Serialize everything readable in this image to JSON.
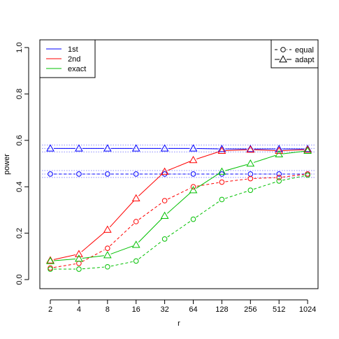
{
  "chart_data": {
    "type": "line",
    "xlabel": "r",
    "ylabel": "power",
    "x": [
      "2",
      "4",
      "8",
      "16",
      "32",
      "64",
      "128",
      "256",
      "512",
      "1024"
    ],
    "ylim": [
      0.0,
      1.0
    ],
    "yticks": [
      "0.0",
      "0.2",
      "0.4",
      "0.6",
      "0.8",
      "1.0"
    ],
    "grid": false,
    "legend_method": {
      "placement": "top-left",
      "entries": [
        {
          "label": "1st",
          "color": "#0000ff"
        },
        {
          "label": "2nd",
          "color": "#ff0000"
        },
        {
          "label": "exact",
          "color": "#00c000"
        }
      ]
    },
    "legend_strategy": {
      "placement": "top-right",
      "entries": [
        {
          "label": "equal",
          "line": "dashed",
          "marker": "circle"
        },
        {
          "label": "adapt",
          "line": "solid",
          "marker": "triangle"
        }
      ]
    },
    "reference_bands": [
      {
        "color": "#0000ff",
        "center": 0.565,
        "low": 0.55,
        "high": 0.58
      },
      {
        "color": "#0000ff",
        "center": 0.455,
        "low": 0.44,
        "high": 0.47
      }
    ],
    "series": [
      {
        "method": "1st",
        "strategy": "adapt",
        "color": "#0000ff",
        "line": "solid",
        "marker": "triangle",
        "values": [
          0.565,
          0.565,
          0.565,
          0.565,
          0.565,
          0.565,
          0.563,
          0.563,
          0.563,
          0.563
        ]
      },
      {
        "method": "1st",
        "strategy": "equal",
        "color": "#0000ff",
        "line": "dashed",
        "marker": "circle",
        "values": [
          0.455,
          0.455,
          0.455,
          0.455,
          0.455,
          0.455,
          0.455,
          0.455,
          0.455,
          0.455
        ]
      },
      {
        "method": "2nd",
        "strategy": "adapt",
        "color": "#ff0000",
        "line": "solid",
        "marker": "triangle",
        "values": [
          0.083,
          0.11,
          0.215,
          0.35,
          0.465,
          0.515,
          0.555,
          0.56,
          0.555,
          0.56
        ]
      },
      {
        "method": "2nd",
        "strategy": "equal",
        "color": "#ff0000",
        "line": "dashed",
        "marker": "circle",
        "values": [
          0.05,
          0.07,
          0.135,
          0.25,
          0.34,
          0.4,
          0.42,
          0.435,
          0.44,
          0.455
        ]
      },
      {
        "method": "exact",
        "strategy": "adapt",
        "color": "#00c000",
        "line": "solid",
        "marker": "triangle",
        "values": [
          0.08,
          0.09,
          0.105,
          0.15,
          0.275,
          0.385,
          0.465,
          0.5,
          0.54,
          0.555
        ]
      },
      {
        "method": "exact",
        "strategy": "equal",
        "color": "#00c000",
        "line": "dashed",
        "marker": "circle",
        "values": [
          0.045,
          0.045,
          0.055,
          0.08,
          0.175,
          0.26,
          0.345,
          0.385,
          0.425,
          0.45
        ]
      }
    ]
  }
}
